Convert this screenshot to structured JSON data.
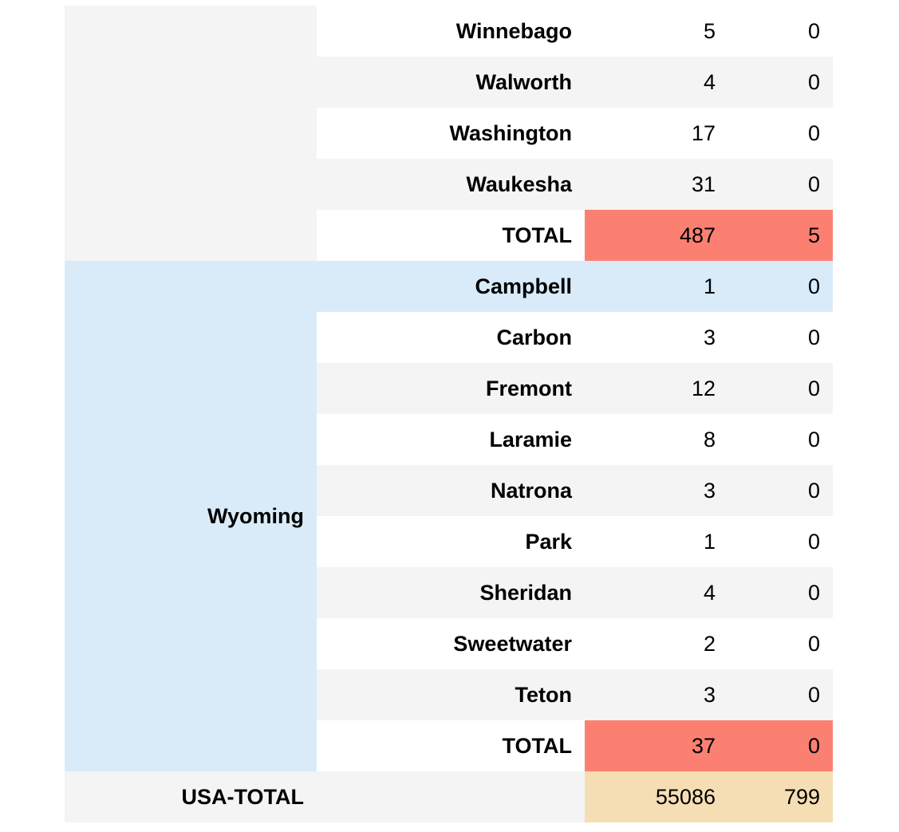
{
  "wisconsin": {
    "rows": [
      {
        "county": "Winnebago",
        "cases": "5",
        "deaths": "0"
      },
      {
        "county": "Walworth",
        "cases": "4",
        "deaths": "0"
      },
      {
        "county": "Washington",
        "cases": "17",
        "deaths": "0"
      },
      {
        "county": "Waukesha",
        "cases": "31",
        "deaths": "0"
      }
    ],
    "total": {
      "label": "TOTAL",
      "cases": "487",
      "deaths": "5"
    }
  },
  "wyoming": {
    "state": "Wyoming",
    "rows": [
      {
        "county": "Campbell",
        "cases": "1",
        "deaths": "0"
      },
      {
        "county": "Carbon",
        "cases": "3",
        "deaths": "0"
      },
      {
        "county": "Fremont",
        "cases": "12",
        "deaths": "0"
      },
      {
        "county": "Laramie",
        "cases": "8",
        "deaths": "0"
      },
      {
        "county": "Natrona",
        "cases": "3",
        "deaths": "0"
      },
      {
        "county": "Park",
        "cases": "1",
        "deaths": "0"
      },
      {
        "county": "Sheridan",
        "cases": "4",
        "deaths": "0"
      },
      {
        "county": "Sweetwater",
        "cases": "2",
        "deaths": "0"
      },
      {
        "county": "Teton",
        "cases": "3",
        "deaths": "0"
      }
    ],
    "total": {
      "label": "TOTAL",
      "cases": "37",
      "deaths": "0"
    }
  },
  "usa_total": {
    "label": "USA-TOTAL",
    "cases": "55086",
    "deaths": "799"
  },
  "colors": {
    "state_total_highlight": "#fb8072",
    "usa_total_highlight": "#f5deb3",
    "wyoming_state_cell": "#d9ebf9",
    "stripe": "#f4f4f4"
  }
}
